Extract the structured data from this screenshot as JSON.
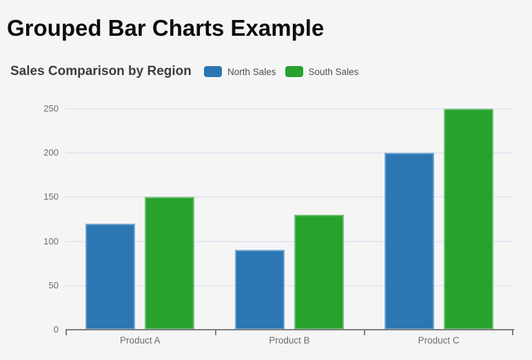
{
  "page": {
    "title": "Grouped Bar Charts Example"
  },
  "chart_data": {
    "type": "bar",
    "title": "Sales Comparison by Region",
    "categories": [
      "Product A",
      "Product B",
      "Product C"
    ],
    "series": [
      {
        "name": "North Sales",
        "color": "#2b76b3",
        "values": [
          120,
          90,
          200
        ]
      },
      {
        "name": "South Sales",
        "color": "#26a22d",
        "values": [
          150,
          130,
          250
        ]
      }
    ],
    "ylim": [
      0,
      250
    ],
    "yticks": [
      0,
      50,
      100,
      150,
      200,
      250
    ],
    "grid": true,
    "legend_position": "top",
    "colors": {
      "grid": "#e5e8f1",
      "axis": "#7d7d7d",
      "tick_label": "#6b6b6b",
      "background": "#f5f5f6"
    }
  }
}
